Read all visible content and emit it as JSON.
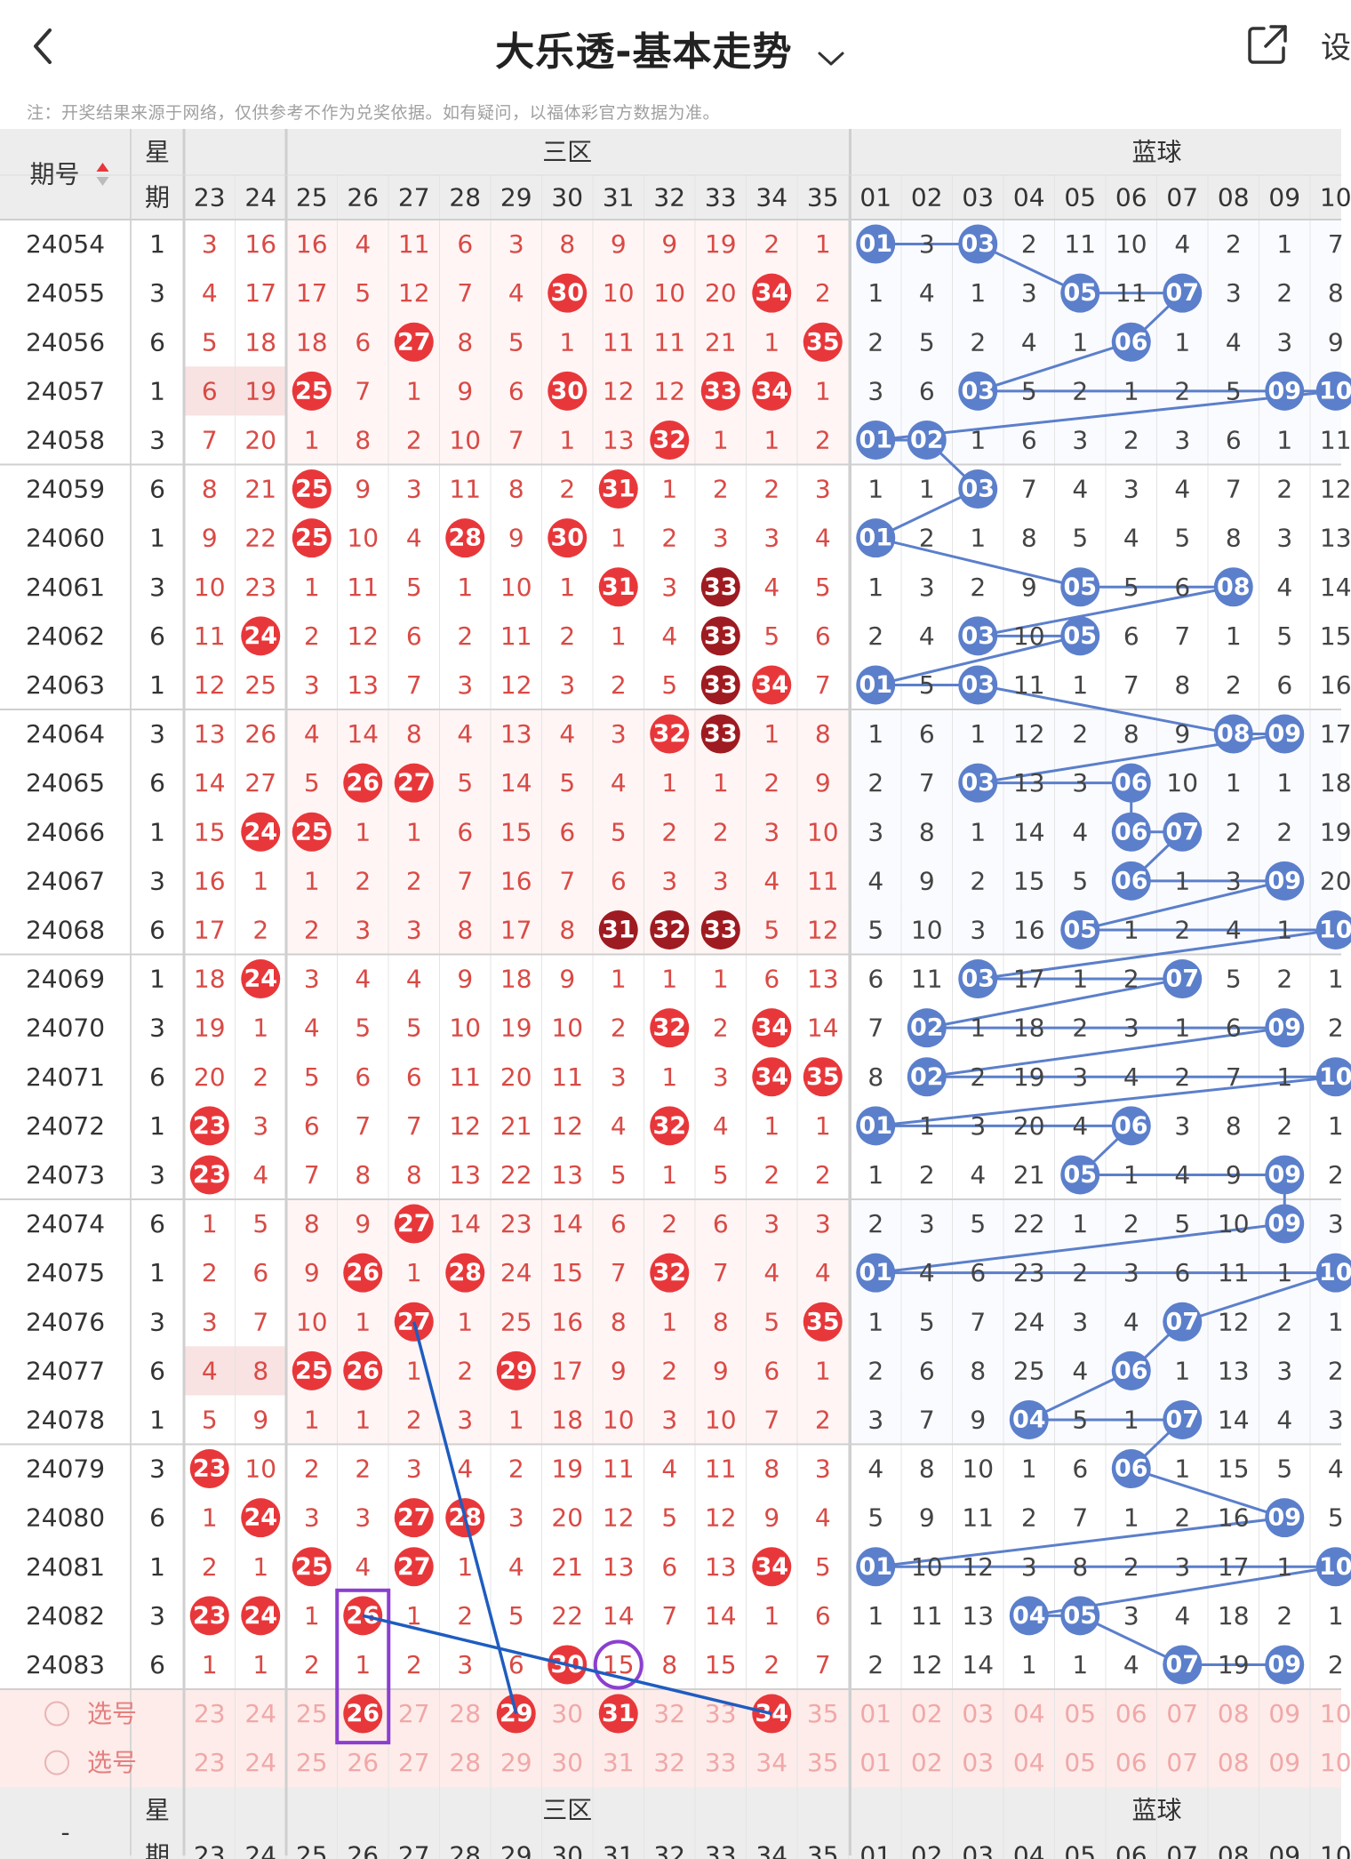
{
  "header": {
    "title": "大乐透-基本走势",
    "settings_label_partial": "设"
  },
  "note": "注：开奖结果来源于网络，仅供参考不作为兑奖依据。如有疑问，以福体彩官方数据为准。",
  "table": {
    "col_period": "期号",
    "col_weekday_top": "星",
    "col_weekday_bottom": "期",
    "zone_label": "三区",
    "blue_label": "蓝球",
    "front_numbers": [
      "23",
      "24",
      "25",
      "26",
      "27",
      "28",
      "29",
      "30",
      "31",
      "32",
      "33",
      "34",
      "35"
    ],
    "blue_numbers": [
      "01",
      "02",
      "03",
      "04",
      "05",
      "06",
      "07",
      "08",
      "09",
      "10"
    ],
    "select_label": "选号",
    "footer_period": "-",
    "rows": [
      {
        "p": "24054",
        "w": "1",
        "f": [
          "3",
          "16",
          "16",
          "4",
          "11",
          "6",
          "3",
          "8",
          "9",
          "9",
          "19",
          "2",
          "1"
        ],
        "b": [
          "01",
          "3",
          "03",
          "2",
          "11",
          "10",
          "4",
          "2",
          "1",
          "7"
        ]
      },
      {
        "p": "24055",
        "w": "3",
        "f": [
          "4",
          "17",
          "17",
          "5",
          "12",
          "7",
          "4",
          "30",
          "10",
          "10",
          "20",
          "34",
          "2"
        ],
        "b": [
          "1",
          "4",
          "1",
          "3",
          "05",
          "11",
          "07",
          "3",
          "2",
          "8"
        ]
      },
      {
        "p": "24056",
        "w": "6",
        "f": [
          "5",
          "18",
          "18",
          "6",
          "27",
          "8",
          "5",
          "1",
          "11",
          "11",
          "21",
          "1",
          "35"
        ],
        "b": [
          "2",
          "5",
          "2",
          "4",
          "1",
          "06",
          "1",
          "4",
          "3",
          "9"
        ]
      },
      {
        "p": "24057",
        "w": "1",
        "f": [
          "6",
          "19",
          "25",
          "7",
          "1",
          "9",
          "6",
          "30",
          "12",
          "12",
          "33",
          "34",
          "1"
        ],
        "b": [
          "3",
          "6",
          "03",
          "5",
          "2",
          "1",
          "2",
          "5",
          "09",
          "10"
        ]
      },
      {
        "p": "24058",
        "w": "3",
        "f": [
          "7",
          "20",
          "1",
          "8",
          "2",
          "10",
          "7",
          "1",
          "13",
          "32",
          "1",
          "1",
          "2"
        ],
        "b": [
          "01",
          "02",
          "1",
          "6",
          "3",
          "2",
          "3",
          "6",
          "1",
          "11"
        ]
      },
      {
        "p": "24059",
        "w": "6",
        "f": [
          "8",
          "21",
          "25",
          "9",
          "3",
          "11",
          "8",
          "2",
          "31",
          "1",
          "2",
          "2",
          "3"
        ],
        "b": [
          "1",
          "1",
          "03",
          "7",
          "4",
          "3",
          "4",
          "7",
          "2",
          "12"
        ]
      },
      {
        "p": "24060",
        "w": "1",
        "f": [
          "9",
          "22",
          "25",
          "10",
          "4",
          "28",
          "9",
          "30",
          "1",
          "2",
          "3",
          "3",
          "4"
        ],
        "b": [
          "01",
          "2",
          "1",
          "8",
          "5",
          "4",
          "5",
          "8",
          "3",
          "13"
        ]
      },
      {
        "p": "24061",
        "w": "3",
        "f": [
          "10",
          "23",
          "1",
          "11",
          "5",
          "1",
          "10",
          "1",
          "31",
          "3",
          "33",
          "4",
          "5"
        ],
        "b": [
          "1",
          "3",
          "2",
          "9",
          "05",
          "5",
          "6",
          "08",
          "4",
          "14"
        ]
      },
      {
        "p": "24062",
        "w": "6",
        "f": [
          "11",
          "24",
          "2",
          "12",
          "6",
          "2",
          "11",
          "2",
          "1",
          "4",
          "33",
          "5",
          "6"
        ],
        "b": [
          "2",
          "4",
          "03",
          "10",
          "05",
          "6",
          "7",
          "1",
          "5",
          "15"
        ]
      },
      {
        "p": "24063",
        "w": "1",
        "f": [
          "12",
          "25",
          "3",
          "13",
          "7",
          "3",
          "12",
          "3",
          "2",
          "5",
          "33",
          "34",
          "7"
        ],
        "b": [
          "01",
          "5",
          "03",
          "11",
          "1",
          "7",
          "8",
          "2",
          "6",
          "16"
        ]
      },
      {
        "p": "24064",
        "w": "3",
        "f": [
          "13",
          "26",
          "4",
          "14",
          "8",
          "4",
          "13",
          "4",
          "3",
          "32",
          "33",
          "1",
          "8"
        ],
        "b": [
          "1",
          "6",
          "1",
          "12",
          "2",
          "8",
          "9",
          "08",
          "09",
          "17"
        ]
      },
      {
        "p": "24065",
        "w": "6",
        "f": [
          "14",
          "27",
          "5",
          "26",
          "27",
          "5",
          "14",
          "5",
          "4",
          "1",
          "1",
          "2",
          "9"
        ],
        "b": [
          "2",
          "7",
          "03",
          "13",
          "3",
          "06",
          "10",
          "1",
          "1",
          "18"
        ]
      },
      {
        "p": "24066",
        "w": "1",
        "f": [
          "15",
          "24",
          "25",
          "1",
          "1",
          "6",
          "15",
          "6",
          "5",
          "2",
          "2",
          "3",
          "10"
        ],
        "b": [
          "3",
          "8",
          "1",
          "14",
          "4",
          "06",
          "07",
          "2",
          "2",
          "19"
        ]
      },
      {
        "p": "24067",
        "w": "3",
        "f": [
          "16",
          "1",
          "1",
          "2",
          "2",
          "7",
          "16",
          "7",
          "6",
          "3",
          "3",
          "4",
          "11"
        ],
        "b": [
          "4",
          "9",
          "2",
          "15",
          "5",
          "06",
          "1",
          "3",
          "09",
          "20"
        ]
      },
      {
        "p": "24068",
        "w": "6",
        "f": [
          "17",
          "2",
          "2",
          "3",
          "3",
          "8",
          "17",
          "8",
          "31",
          "32",
          "33",
          "5",
          "12"
        ],
        "b": [
          "5",
          "10",
          "3",
          "16",
          "05",
          "1",
          "2",
          "4",
          "1",
          "10"
        ]
      },
      {
        "p": "24069",
        "w": "1",
        "f": [
          "18",
          "24",
          "3",
          "4",
          "4",
          "9",
          "18",
          "9",
          "1",
          "1",
          "1",
          "6",
          "13"
        ],
        "b": [
          "6",
          "11",
          "03",
          "17",
          "1",
          "2",
          "07",
          "5",
          "2",
          "1"
        ]
      },
      {
        "p": "24070",
        "w": "3",
        "f": [
          "19",
          "1",
          "4",
          "5",
          "5",
          "10",
          "19",
          "10",
          "2",
          "32",
          "2",
          "34",
          "14"
        ],
        "b": [
          "7",
          "02",
          "1",
          "18",
          "2",
          "3",
          "1",
          "6",
          "09",
          "2"
        ]
      },
      {
        "p": "24071",
        "w": "6",
        "f": [
          "20",
          "2",
          "5",
          "6",
          "6",
          "11",
          "20",
          "11",
          "3",
          "1",
          "3",
          "34",
          "35"
        ],
        "b": [
          "8",
          "02",
          "2",
          "19",
          "3",
          "4",
          "2",
          "7",
          "1",
          "10"
        ]
      },
      {
        "p": "24072",
        "w": "1",
        "f": [
          "23",
          "3",
          "6",
          "7",
          "7",
          "12",
          "21",
          "12",
          "4",
          "32",
          "4",
          "1",
          "1"
        ],
        "b": [
          "01",
          "1",
          "3",
          "20",
          "4",
          "06",
          "3",
          "8",
          "2",
          "1"
        ]
      },
      {
        "p": "24073",
        "w": "3",
        "f": [
          "23",
          "4",
          "7",
          "8",
          "8",
          "13",
          "22",
          "13",
          "5",
          "1",
          "5",
          "2",
          "2"
        ],
        "b": [
          "1",
          "2",
          "4",
          "21",
          "05",
          "1",
          "4",
          "9",
          "09",
          "2"
        ]
      },
      {
        "p": "24074",
        "w": "6",
        "f": [
          "1",
          "5",
          "8",
          "9",
          "27",
          "14",
          "23",
          "14",
          "6",
          "2",
          "6",
          "3",
          "3"
        ],
        "b": [
          "2",
          "3",
          "5",
          "22",
          "1",
          "2",
          "5",
          "10",
          "09",
          "3"
        ]
      },
      {
        "p": "24075",
        "w": "1",
        "f": [
          "2",
          "6",
          "9",
          "26",
          "1",
          "28",
          "24",
          "15",
          "7",
          "32",
          "7",
          "4",
          "4"
        ],
        "b": [
          "01",
          "4",
          "6",
          "23",
          "2",
          "3",
          "6",
          "11",
          "1",
          "10"
        ]
      },
      {
        "p": "24076",
        "w": "3",
        "f": [
          "3",
          "7",
          "10",
          "1",
          "27",
          "1",
          "25",
          "16",
          "8",
          "1",
          "8",
          "5",
          "35"
        ],
        "b": [
          "1",
          "5",
          "7",
          "24",
          "3",
          "4",
          "07",
          "12",
          "2",
          "1"
        ]
      },
      {
        "p": "24077",
        "w": "6",
        "f": [
          "4",
          "8",
          "25",
          "26",
          "1",
          "2",
          "29",
          "17",
          "9",
          "2",
          "9",
          "6",
          "1"
        ],
        "b": [
          "2",
          "6",
          "8",
          "25",
          "4",
          "06",
          "1",
          "13",
          "3",
          "2"
        ]
      },
      {
        "p": "24078",
        "w": "1",
        "f": [
          "5",
          "9",
          "1",
          "1",
          "2",
          "3",
          "1",
          "18",
          "10",
          "3",
          "10",
          "7",
          "2"
        ],
        "b": [
          "3",
          "7",
          "9",
          "04",
          "5",
          "1",
          "07",
          "14",
          "4",
          "3"
        ]
      },
      {
        "p": "24079",
        "w": "3",
        "f": [
          "23",
          "10",
          "2",
          "2",
          "3",
          "4",
          "2",
          "19",
          "11",
          "4",
          "11",
          "8",
          "3"
        ],
        "b": [
          "4",
          "8",
          "10",
          "1",
          "6",
          "06",
          "1",
          "15",
          "5",
          "4"
        ]
      },
      {
        "p": "24080",
        "w": "6",
        "f": [
          "1",
          "24",
          "3",
          "3",
          "27",
          "28",
          "3",
          "20",
          "12",
          "5",
          "12",
          "9",
          "4"
        ],
        "b": [
          "5",
          "9",
          "11",
          "2",
          "7",
          "1",
          "2",
          "16",
          "09",
          "5"
        ]
      },
      {
        "p": "24081",
        "w": "1",
        "f": [
          "2",
          "1",
          "25",
          "4",
          "27",
          "1",
          "4",
          "21",
          "13",
          "6",
          "13",
          "34",
          "5"
        ],
        "b": [
          "01",
          "10",
          "12",
          "3",
          "8",
          "2",
          "3",
          "17",
          "1",
          "10"
        ]
      },
      {
        "p": "24082",
        "w": "3",
        "f": [
          "23",
          "24",
          "1",
          "26",
          "1",
          "2",
          "5",
          "22",
          "14",
          "7",
          "14",
          "1",
          "6"
        ],
        "b": [
          "1",
          "11",
          "13",
          "04",
          "05",
          "3",
          "4",
          "18",
          "2",
          "1"
        ]
      },
      {
        "p": "24083",
        "w": "6",
        "f": [
          "1",
          "1",
          "2",
          "1",
          "2",
          "3",
          "6",
          "30",
          "15",
          "8",
          "15",
          "2",
          "7"
        ],
        "b": [
          "2",
          "12",
          "14",
          "1",
          "1",
          "4",
          "07",
          "19",
          "09",
          "2"
        ]
      }
    ],
    "selected_front": [
      "26",
      "29",
      "31",
      "34"
    ]
  },
  "colors": {
    "red": "#e8373a",
    "dark_red": "#9e1b21",
    "red_text": "#d94a45",
    "blue_ball": "#5b7fcb",
    "blue_line": "#5b7fcb",
    "header_bg": "#ededed",
    "highlight_bg": "#fdeeee",
    "select_bg": "#fdecea",
    "purple_marker": "#8b3fd0",
    "pen_line": "#1e5cc0"
  }
}
